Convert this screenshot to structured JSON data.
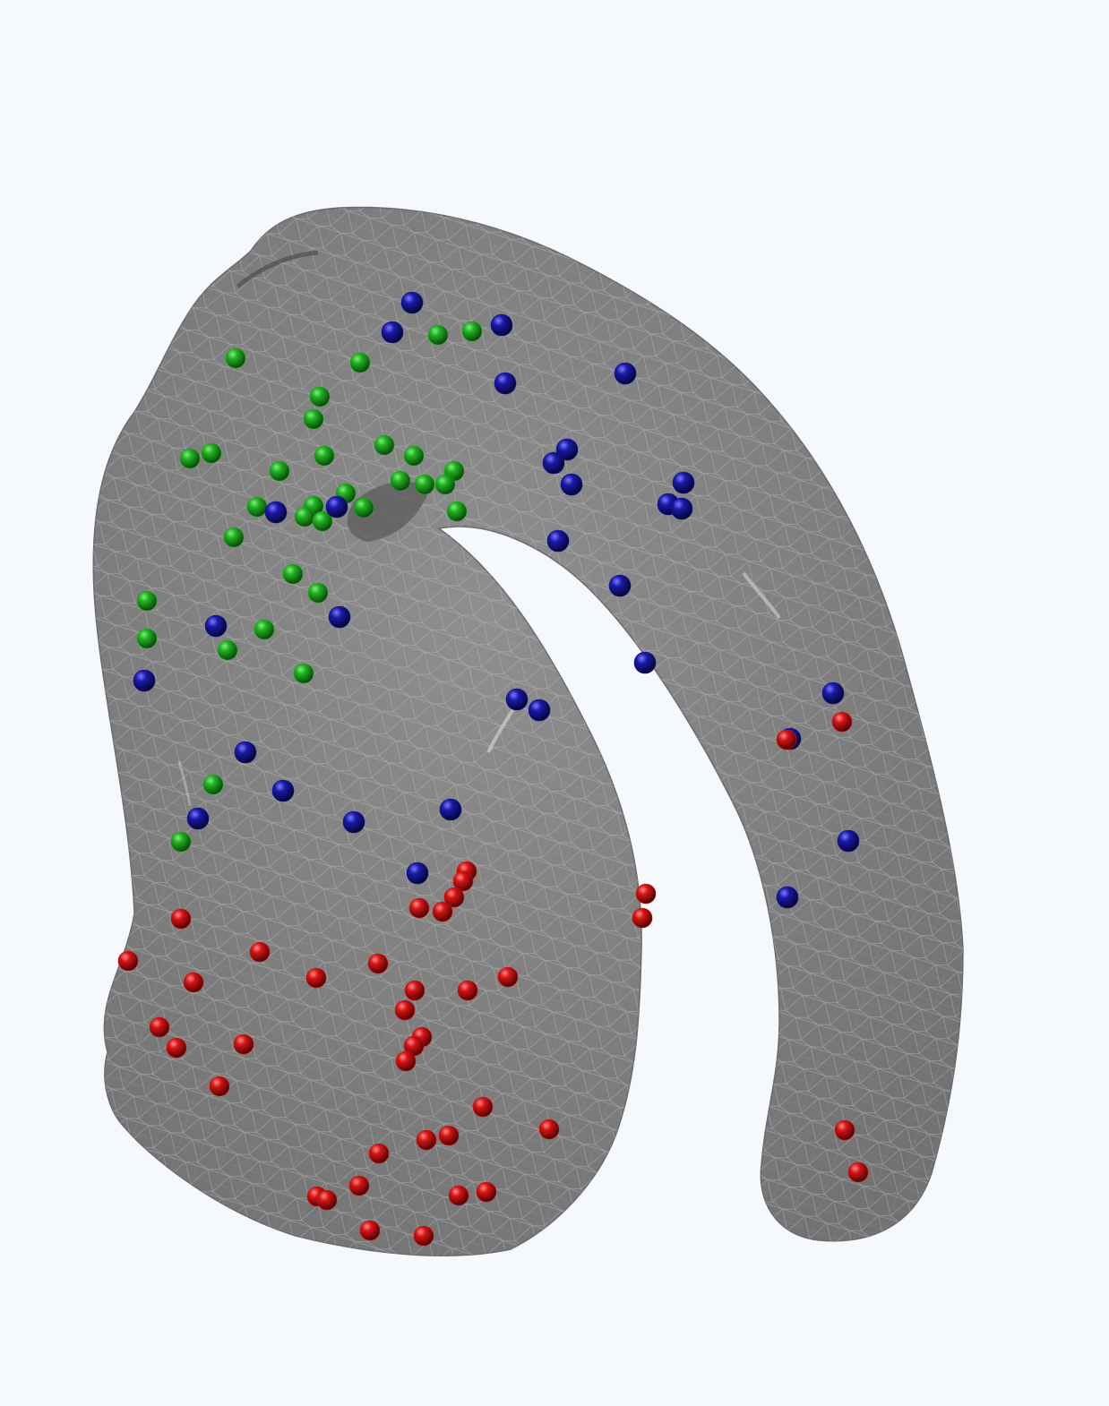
{
  "scene": {
    "background": "#f5f9fd",
    "mesh": {
      "name": "organ-mesh",
      "fill": "#808080",
      "wireframe": "#b9b9b9"
    },
    "marker_colors": {
      "green": "#1fa51f",
      "blue": "#14148e",
      "red": "#d11212"
    },
    "marker_groups": [
      "green",
      "blue",
      "red"
    ]
  }
}
